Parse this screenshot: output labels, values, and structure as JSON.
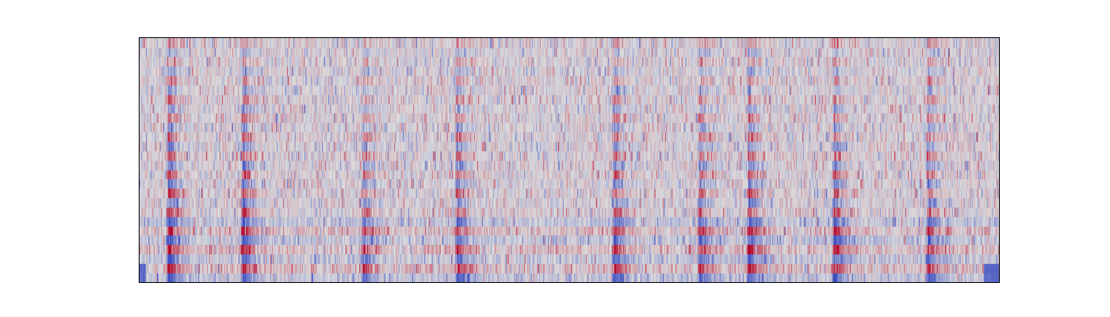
{
  "chart_data": {
    "type": "heatmap",
    "title": "",
    "xlabel": "",
    "ylabel": "",
    "axes_visible": false,
    "ticks_visible": false,
    "colorbar_visible": false,
    "colormap": "coolwarm",
    "colors": {
      "low": "#3b4cc0",
      "mid": "#dddddd",
      "high": "#b40426"
    },
    "frames": 1084,
    "bins": 26,
    "value_range": [
      -1,
      1
    ],
    "onset_frames": [
      36,
      130,
      282,
      400,
      598,
      706,
      768,
      876,
      994
    ],
    "onset_strength": [
      1.0,
      0.95,
      0.7,
      0.85,
      0.9,
      0.85,
      0.9,
      0.85,
      0.8
    ],
    "low_band_bias": {
      "left_edge": -0.8,
      "right_edge": -0.8
    }
  }
}
